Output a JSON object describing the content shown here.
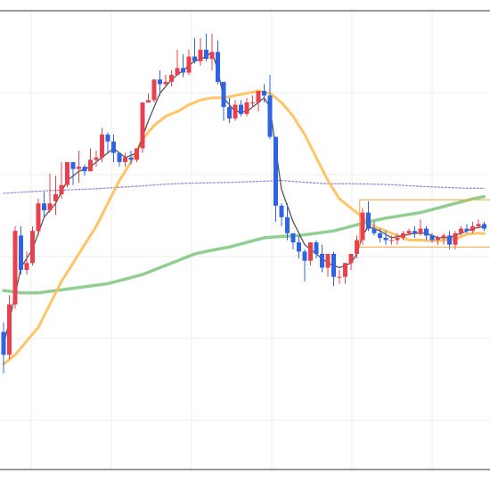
{
  "chart_data": {
    "type": "candlestick",
    "title": "",
    "xlabel": "",
    "ylabel": "",
    "ylim": [
      0,
      100
    ],
    "grid": true,
    "legend": "none",
    "colors": {
      "up": "#e8404f",
      "down": "#2f63e6",
      "ma_fast": "#555555",
      "ma_mid": "#ffbf55",
      "ma_slow": "#85c985",
      "ma_long": "#9a7fd1",
      "box": "#f0a33a",
      "grid": "#ececec",
      "frame": "#333333"
    },
    "candles": [
      [
        0,
        30.0,
        25.0,
        32.0,
        21.0
      ],
      [
        1,
        25.0,
        36.0,
        38.0,
        24.0
      ],
      [
        2,
        36.0,
        52.0,
        53.0,
        35.0
      ],
      [
        3,
        51.0,
        43.5,
        53.0,
        42.5
      ],
      [
        4,
        43.5,
        45.0,
        47.5,
        42.5
      ],
      [
        5,
        45.0,
        52.0,
        53.0,
        44.5
      ],
      [
        6,
        52.0,
        58.0,
        59.0,
        51.0
      ],
      [
        7,
        58.0,
        56.5,
        60.5,
        55.0
      ],
      [
        8,
        56.5,
        58.0,
        64.5,
        56.0
      ],
      [
        9,
        58.5,
        60.0,
        64.0,
        55.5
      ],
      [
        10,
        60.0,
        62.0,
        67.0,
        59.0
      ],
      [
        11,
        62.0,
        67.0,
        67.0,
        61.5
      ],
      [
        12,
        67.0,
        65.5,
        67.0,
        62.0
      ],
      [
        13,
        65.5,
        66.0,
        69.5,
        62.5
      ],
      [
        14,
        66.0,
        65.0,
        66.5,
        64.0
      ],
      [
        15,
        65.0,
        67.5,
        70.0,
        65.0
      ],
      [
        16,
        67.5,
        68.0,
        69.5,
        66.0
      ],
      [
        17,
        68.0,
        73.0,
        74.5,
        67.0
      ],
      [
        18,
        73.0,
        71.5,
        73.5,
        69.0
      ],
      [
        19,
        71.5,
        69.0,
        73.0,
        67.0
      ],
      [
        20,
        69.0,
        67.0,
        69.0,
        66.0
      ],
      [
        21,
        67.0,
        68.0,
        69.0,
        66.0
      ],
      [
        22,
        68.0,
        67.5,
        69.5,
        66.5
      ],
      [
        23,
        67.5,
        70.0,
        70.0,
        67.0
      ],
      [
        24,
        70.0,
        80.0,
        80.0,
        69.0
      ],
      [
        25,
        80.0,
        80.5,
        82.0,
        80.0
      ],
      [
        26,
        80.5,
        85.0,
        85.0,
        80.0
      ],
      [
        27,
        85.0,
        84.0,
        87.0,
        81.5
      ],
      [
        28,
        84.0,
        84.5,
        86.0,
        83.5
      ],
      [
        29,
        84.5,
        86.0,
        87.0,
        83.5
      ],
      [
        30,
        86.0,
        87.5,
        91.5,
        86.0
      ],
      [
        31,
        87.5,
        86.5,
        90.5,
        85.5
      ],
      [
        32,
        86.5,
        90.0,
        91.5,
        86.0
      ],
      [
        33,
        90.0,
        89.0,
        94.0,
        88.5
      ],
      [
        34,
        89.0,
        91.5,
        94.0,
        88.0
      ],
      [
        35,
        91.5,
        89.5,
        95.0,
        89.0
      ],
      [
        36,
        89.5,
        91.0,
        95.0,
        87.0
      ],
      [
        37,
        91.0,
        84.5,
        93.5,
        84.0
      ],
      [
        38,
        84.5,
        79.0,
        83.0,
        76.0
      ],
      [
        39,
        79.0,
        76.5,
        81.0,
        75.5
      ],
      [
        40,
        76.5,
        79.5,
        80.5,
        76.0
      ],
      [
        41,
        79.5,
        77.5,
        80.5,
        77.0
      ],
      [
        42,
        77.5,
        80.0,
        81.0,
        77.0
      ],
      [
        43,
        80.0,
        80.0,
        81.5,
        79.0
      ],
      [
        44,
        80.0,
        82.5,
        82.5,
        78.0
      ],
      [
        45,
        82.5,
        81.5,
        84.0,
        80.0
      ],
      [
        46,
        81.5,
        72.5,
        86.0,
        72.0
      ],
      [
        47,
        72.5,
        57.5,
        72.5,
        54.0
      ],
      [
        48,
        57.5,
        55.0,
        58.0,
        53.0
      ],
      [
        49,
        55.0,
        51.5,
        58.0,
        50.0
      ],
      [
        50,
        51.5,
        49.5,
        51.5,
        48.0
      ],
      [
        51,
        49.5,
        47.5,
        51.0,
        46.0
      ],
      [
        52,
        47.5,
        45.5,
        48.0,
        41.0
      ],
      [
        53,
        45.5,
        49.5,
        49.5,
        44.5
      ],
      [
        54,
        49.5,
        47.0,
        50.0,
        46.0
      ],
      [
        55,
        47.0,
        44.0,
        49.0,
        43.0
      ],
      [
        56,
        44.0,
        47.0,
        47.0,
        42.0
      ],
      [
        57,
        47.0,
        42.0,
        47.5,
        40.0
      ],
      [
        58,
        42.0,
        42.0,
        43.5,
        40.5
      ],
      [
        59,
        42.0,
        45.0,
        45.0,
        40.5
      ],
      [
        60,
        45.0,
        47.0,
        47.0,
        43.5
      ],
      [
        61,
        47.0,
        50.0,
        51.0,
        46.0
      ],
      [
        62,
        50.0,
        56.0,
        57.0,
        49.0
      ],
      [
        63,
        56.0,
        52.5,
        58.5,
        52.0
      ],
      [
        64,
        52.5,
        51.5,
        54.0,
        51.0
      ],
      [
        65,
        51.5,
        50.5,
        52.5,
        49.5
      ],
      [
        66,
        50.5,
        50.0,
        52.0,
        49.0
      ],
      [
        67,
        50.0,
        50.0,
        51.0,
        49.0
      ],
      [
        68,
        50.0,
        50.5,
        51.5,
        49.0
      ],
      [
        69,
        50.5,
        51.5,
        52.0,
        50.0
      ],
      [
        70,
        51.5,
        52.0,
        52.5,
        51.0
      ],
      [
        71,
        52.0,
        51.5,
        53.0,
        50.5
      ],
      [
        72,
        51.5,
        52.5,
        54.5,
        51.0
      ],
      [
        73,
        52.5,
        51.0,
        53.0,
        50.0
      ],
      [
        74,
        51.0,
        50.0,
        51.5,
        49.5
      ],
      [
        75,
        50.0,
        50.5,
        51.0,
        49.0
      ],
      [
        76,
        50.5,
        51.0,
        51.5,
        49.0
      ],
      [
        77,
        51.0,
        49.0,
        52.0,
        48.0
      ],
      [
        78,
        49.0,
        51.5,
        52.0,
        48.0
      ],
      [
        79,
        51.5,
        52.5,
        53.0,
        51.0
      ],
      [
        80,
        52.5,
        52.0,
        53.5,
        51.5
      ],
      [
        81,
        52.0,
        53.0,
        54.0,
        51.5
      ],
      [
        82,
        53.0,
        53.5,
        54.5,
        52.5
      ],
      [
        83,
        53.5,
        52.5,
        54.0,
        52.0
      ]
    ],
    "series": [
      {
        "key": "ma_fast",
        "values": [
          [
            0,
            27
          ],
          [
            2,
            38
          ],
          [
            3,
            44
          ],
          [
            5,
            48
          ],
          [
            7,
            55
          ],
          [
            9,
            58
          ],
          [
            11,
            63
          ],
          [
            13,
            65
          ],
          [
            15,
            66
          ],
          [
            17,
            68
          ],
          [
            19,
            70
          ],
          [
            21,
            68
          ],
          [
            23,
            69
          ],
          [
            25,
            76
          ],
          [
            27,
            82
          ],
          [
            29,
            85
          ],
          [
            31,
            87
          ],
          [
            33,
            89
          ],
          [
            35,
            90
          ],
          [
            36,
            91
          ],
          [
            37,
            87
          ],
          [
            38,
            81
          ],
          [
            40,
            78
          ],
          [
            42,
            78
          ],
          [
            44,
            80
          ],
          [
            45,
            81
          ],
          [
            46,
            79
          ],
          [
            47,
            70
          ],
          [
            48,
            61
          ],
          [
            50,
            54
          ],
          [
            52,
            49
          ],
          [
            54,
            47
          ],
          [
            56,
            45
          ],
          [
            58,
            44
          ],
          [
            60,
            45
          ],
          [
            61,
            47
          ],
          [
            62,
            51
          ],
          [
            63,
            53
          ],
          [
            65,
            52
          ],
          [
            67,
            50.5
          ],
          [
            69,
            51
          ],
          [
            71,
            51.5
          ],
          [
            73,
            51.5
          ],
          [
            75,
            50.5
          ],
          [
            77,
            50.5
          ],
          [
            79,
            51.5
          ],
          [
            81,
            52.5
          ],
          [
            83,
            53
          ]
        ]
      },
      {
        "key": "ma_mid",
        "values": [
          [
            0,
            23
          ],
          [
            2,
            25
          ],
          [
            4,
            28
          ],
          [
            6,
            31
          ],
          [
            8,
            36
          ],
          [
            10,
            41
          ],
          [
            12,
            45
          ],
          [
            14,
            49
          ],
          [
            16,
            53
          ],
          [
            18,
            58
          ],
          [
            20,
            63
          ],
          [
            22,
            67
          ],
          [
            24,
            72
          ],
          [
            26,
            75
          ],
          [
            28,
            77
          ],
          [
            30,
            78
          ],
          [
            32,
            79.5
          ],
          [
            34,
            80.5
          ],
          [
            36,
            81
          ],
          [
            38,
            81
          ],
          [
            40,
            81.5
          ],
          [
            42,
            82
          ],
          [
            44,
            82.5
          ],
          [
            46,
            82
          ],
          [
            48,
            80
          ],
          [
            50,
            77
          ],
          [
            52,
            73
          ],
          [
            54,
            68
          ],
          [
            56,
            63
          ],
          [
            58,
            59
          ],
          [
            60,
            57
          ],
          [
            62,
            55
          ],
          [
            64,
            53
          ],
          [
            66,
            52
          ],
          [
            68,
            51
          ],
          [
            70,
            50
          ],
          [
            72,
            50
          ],
          [
            74,
            49.8
          ],
          [
            76,
            50
          ],
          [
            78,
            50.2
          ],
          [
            80,
            51.3
          ],
          [
            82,
            51.5
          ],
          [
            83,
            51.4
          ]
        ]
      },
      {
        "key": "ma_slow",
        "values": [
          [
            0,
            39
          ],
          [
            3,
            38.5
          ],
          [
            6,
            38.5
          ],
          [
            9,
            39
          ],
          [
            12,
            39.5
          ],
          [
            15,
            40
          ],
          [
            18,
            40.5
          ],
          [
            21,
            41.5
          ],
          [
            24,
            42.5
          ],
          [
            27,
            44
          ],
          [
            30,
            45.5
          ],
          [
            33,
            47
          ],
          [
            36,
            47.8
          ],
          [
            39,
            48.5
          ],
          [
            42,
            49.5
          ],
          [
            45,
            50.5
          ],
          [
            48,
            50.8
          ],
          [
            51,
            51
          ],
          [
            54,
            51.5
          ],
          [
            57,
            52
          ],
          [
            60,
            53
          ],
          [
            63,
            54
          ],
          [
            66,
            54.8
          ],
          [
            69,
            55.4
          ],
          [
            72,
            56
          ],
          [
            75,
            57
          ],
          [
            78,
            58
          ],
          [
            81,
            59
          ],
          [
            83,
            59.5
          ]
        ]
      },
      {
        "key": "ma_long",
        "values": [
          [
            0,
            60.2
          ],
          [
            4,
            60.5
          ],
          [
            8,
            60.8
          ],
          [
            12,
            61
          ],
          [
            16,
            61.2
          ],
          [
            20,
            61.5
          ],
          [
            24,
            61.8
          ],
          [
            28,
            62.2
          ],
          [
            32,
            62.4
          ],
          [
            36,
            62.5
          ],
          [
            40,
            62.6
          ],
          [
            44,
            62.8
          ],
          [
            48,
            63
          ],
          [
            52,
            62.6
          ],
          [
            56,
            62.3
          ],
          [
            60,
            62.3
          ],
          [
            64,
            62.2
          ],
          [
            68,
            62
          ],
          [
            72,
            61.7
          ],
          [
            76,
            61.5
          ],
          [
            80,
            61.3
          ],
          [
            83,
            61.3
          ]
        ]
      }
    ],
    "highlight_box": {
      "x_start": 61.5,
      "x_end": 84.5,
      "y_low": 48.5,
      "y_high": 58.8
    }
  }
}
